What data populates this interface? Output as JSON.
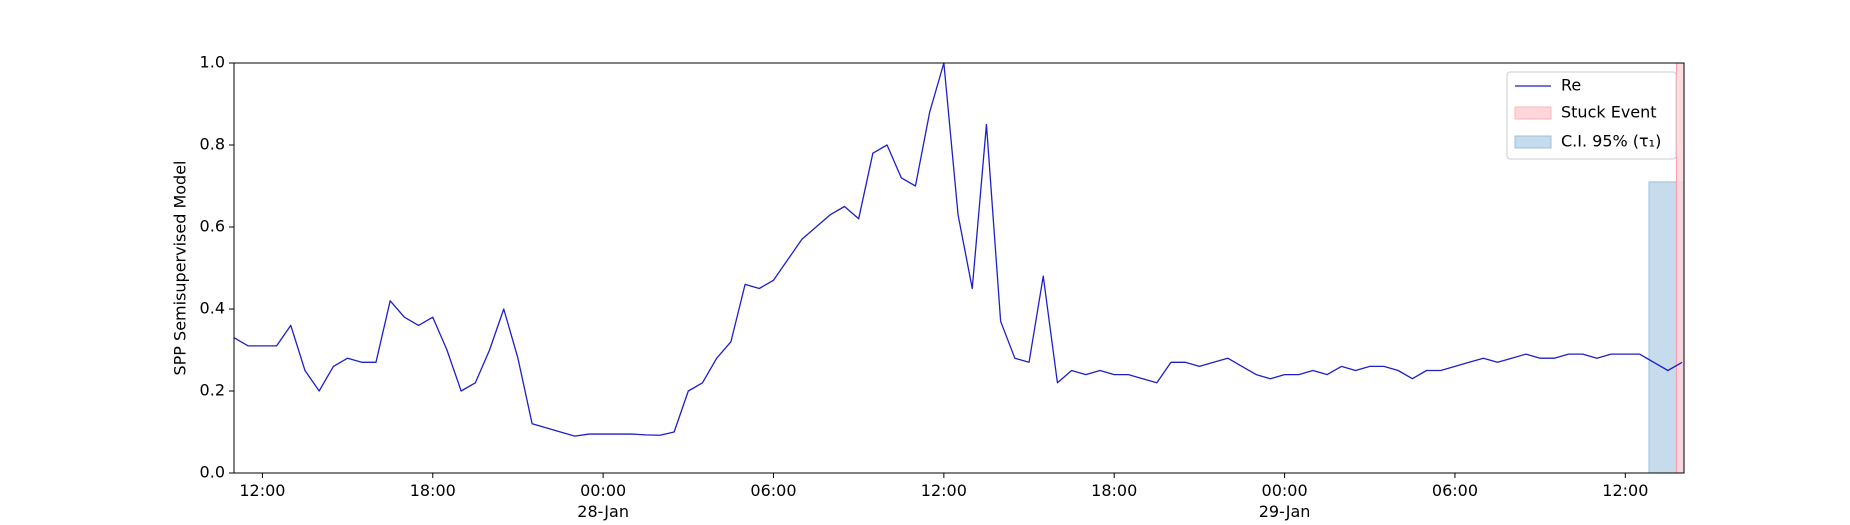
{
  "chart_data": {
    "type": "line",
    "ylabel": "SPP Semisupervised Model",
    "xlim": [
      "1900-01-27T11:00",
      "1900-01-29T14:04"
    ],
    "ylim": [
      0,
      1
    ],
    "yticks": [
      {
        "value": 0,
        "label": "0.0"
      },
      0.2,
      0.4,
      0.6,
      0.8,
      {
        "value": 1,
        "label": "1.0"
      }
    ],
    "xticks": [
      {
        "value": "1900-01-27T12:00",
        "label": "12:00"
      },
      {
        "value": "1900-01-27T18:00",
        "label": "18:00"
      },
      {
        "value": "1900-01-28T00:00",
        "label": "00:00\n28-Jan\n1900"
      },
      {
        "value": "1900-01-28T06:00",
        "label": "06:00"
      },
      {
        "value": "1900-01-28T12:00",
        "label": "12:00"
      },
      {
        "value": "1900-01-28T18:00",
        "label": "18:00"
      },
      {
        "value": "1900-01-29T00:00",
        "label": "00:00\n29-Jan"
      },
      {
        "value": "1900-01-29T06:00",
        "label": "06:00"
      },
      {
        "value": "1900-01-29T12:00",
        "label": "12:00"
      }
    ],
    "legend": "upper right",
    "x": [
      "1900-01-27T11:00",
      "1900-01-27T11:30",
      "1900-01-27T12:00",
      "1900-01-27T12:30",
      "1900-01-27T13:00",
      "1900-01-27T13:30",
      "1900-01-27T14:00",
      "1900-01-27T14:30",
      "1900-01-27T15:00",
      "1900-01-27T15:30",
      "1900-01-27T16:00",
      "1900-01-27T16:30",
      "1900-01-27T17:00",
      "1900-01-27T17:30",
      "1900-01-27T18:00",
      "1900-01-27T18:30",
      "1900-01-27T19:00",
      "1900-01-27T19:30",
      "1900-01-27T20:00",
      "1900-01-27T20:30",
      "1900-01-27T21:00",
      "1900-01-27T21:30",
      "1900-01-27T22:00",
      "1900-01-27T22:30",
      "1900-01-27T23:00",
      "1900-01-27T23:30",
      "1900-01-28T00:00",
      "1900-01-28T00:30",
      "1900-01-28T01:00",
      "1900-01-28T01:30",
      "1900-01-28T02:00",
      "1900-01-28T02:30",
      "1900-01-28T03:00",
      "1900-01-28T03:30",
      "1900-01-28T04:00",
      "1900-01-28T04:30",
      "1900-01-28T05:00",
      "1900-01-28T05:30",
      "1900-01-28T06:00",
      "1900-01-28T06:30",
      "1900-01-28T07:00",
      "1900-01-28T07:30",
      "1900-01-28T08:00",
      "1900-01-28T08:30",
      "1900-01-28T09:00",
      "1900-01-28T09:30",
      "1900-01-28T10:00",
      "1900-01-28T10:30",
      "1900-01-28T11:00",
      "1900-01-28T11:30",
      "1900-01-28T12:00",
      "1900-01-28T12:30",
      "1900-01-28T13:00",
      "1900-01-28T13:30",
      "1900-01-28T14:00",
      "1900-01-28T14:30",
      "1900-01-28T15:00",
      "1900-01-28T15:30",
      "1900-01-28T16:00",
      "1900-01-28T16:30",
      "1900-01-28T17:00",
      "1900-01-28T17:30",
      "1900-01-28T18:00",
      "1900-01-28T18:30",
      "1900-01-28T19:00",
      "1900-01-28T19:30",
      "1900-01-28T20:00",
      "1900-01-28T20:30",
      "1900-01-28T21:00",
      "1900-01-28T21:30",
      "1900-01-28T22:00",
      "1900-01-28T22:30",
      "1900-01-28T23:00",
      "1900-01-28T23:30",
      "1900-01-29T00:00",
      "1900-01-29T00:30",
      "1900-01-29T01:00",
      "1900-01-29T01:30",
      "1900-01-29T02:00",
      "1900-01-29T02:30",
      "1900-01-29T03:00",
      "1900-01-29T03:30",
      "1900-01-29T04:00",
      "1900-01-29T04:30",
      "1900-01-29T05:00",
      "1900-01-29T05:30",
      "1900-01-29T06:00",
      "1900-01-29T06:30",
      "1900-01-29T07:00",
      "1900-01-29T07:30",
      "1900-01-29T08:00",
      "1900-01-29T08:30",
      "1900-01-29T09:00",
      "1900-01-29T09:30",
      "1900-01-29T10:00",
      "1900-01-29T10:30",
      "1900-01-29T11:00",
      "1900-01-29T11:30",
      "1900-01-29T12:00",
      "1900-01-29T12:30",
      "1900-01-29T13:00",
      "1900-01-29T13:30",
      "1900-01-29T14:00"
    ],
    "series": [
      {
        "name": "Re",
        "color": "#1f1fc8",
        "values": [
          0.33,
          0.31,
          0.31,
          0.31,
          0.36,
          0.25,
          0.2,
          0.26,
          0.28,
          0.27,
          0.27,
          0.42,
          0.38,
          0.36,
          0.38,
          0.3,
          0.2,
          0.22,
          0.3,
          0.4,
          0.28,
          0.12,
          0.11,
          0.1,
          0.09,
          0.095,
          0.095,
          0.095,
          0.095,
          0.093,
          0.092,
          0.1,
          0.2,
          0.22,
          0.28,
          0.32,
          0.46,
          0.45,
          0.47,
          0.52,
          0.57,
          0.6,
          0.63,
          0.65,
          0.62,
          0.78,
          0.8,
          0.72,
          0.7,
          0.88,
          1.0,
          0.63,
          0.45,
          0.85,
          0.37,
          0.28,
          0.27,
          0.48,
          0.22,
          0.25,
          0.24,
          0.25,
          0.24,
          0.24,
          0.23,
          0.22,
          0.27,
          0.27,
          0.26,
          0.27,
          0.28,
          0.26,
          0.24,
          0.23,
          0.24,
          0.24,
          0.25,
          0.24,
          0.26,
          0.25,
          0.26,
          0.26,
          0.25,
          0.23,
          0.25,
          0.25,
          0.26,
          0.27,
          0.28,
          0.27,
          0.28,
          0.29,
          0.28,
          0.28,
          0.29,
          0.29,
          0.28,
          0.29,
          0.29,
          0.29,
          0.27,
          0.25,
          0.27
        ]
      }
    ],
    "stuck_event": {
      "name": "Stuck Event",
      "color": "#ffd6dc",
      "x": [
        "1900-01-29T13:48",
        "1900-01-29T14:04"
      ]
    },
    "ci": {
      "name": "C.I. 95% (τ₁)",
      "color": "#c6dbec",
      "x": [
        "1900-01-29T12:50",
        "1900-01-29T14:04"
      ],
      "y": [
        0,
        0.71
      ]
    }
  }
}
